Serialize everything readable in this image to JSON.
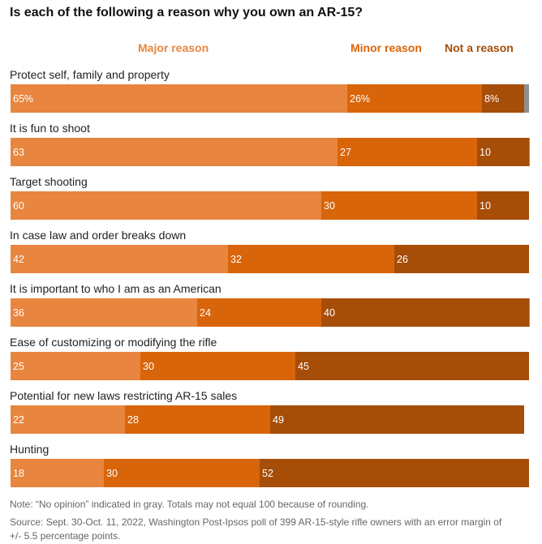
{
  "title": "Is each of the following a reason why you own an AR-15?",
  "note": "Note: “No opinion” indicated in gray. Totals may not equal 100 because of rounding.",
  "source": "Source: Sept. 30-Oct. 11, 2022, Washington Post-Ipsos poll of 399 AR-15-style rifle owners with an error margin of +/- 5.5 percentage points.",
  "colors": {
    "major": "#e8853f",
    "minor": "#d9650a",
    "not": "#a64d08",
    "no_opinion": "#909090"
  },
  "chart_data": {
    "type": "bar",
    "orientation": "horizontal",
    "stacked": true,
    "xlim": [
      0,
      100
    ],
    "grid": false,
    "legend": "top",
    "legend_entries": [
      "Major reason",
      "Minor reason",
      "Not a reason"
    ],
    "categories": [
      "Protect self, family and property",
      "It is fun to shoot",
      "Target shooting",
      "In case law and order breaks down",
      "It is important to who I am as an American",
      "Ease of customizing or modifying the rifle",
      "Potential for new laws restricting AR-15 sales",
      "Hunting"
    ],
    "series": [
      {
        "name": "Major reason",
        "values": [
          65,
          63,
          60,
          42,
          36,
          25,
          22,
          18
        ],
        "labels": [
          "65%",
          "63",
          "60",
          "42",
          "36",
          "25",
          "22",
          "18"
        ]
      },
      {
        "name": "Minor reason",
        "values": [
          26,
          27,
          30,
          32,
          24,
          30,
          28,
          30
        ],
        "labels": [
          "26%",
          "27",
          "30",
          "32",
          "24",
          "30",
          "28",
          "30"
        ]
      },
      {
        "name": "Not a reason",
        "values": [
          8,
          10,
          10,
          26,
          40,
          45,
          49,
          52
        ],
        "labels": [
          "8%",
          "10",
          "10",
          "26",
          "40",
          "45",
          "49",
          "52"
        ]
      },
      {
        "values": [
          1,
          0.5,
          0,
          0,
          0.5,
          0,
          0,
          0
        ]
      }
    ]
  }
}
